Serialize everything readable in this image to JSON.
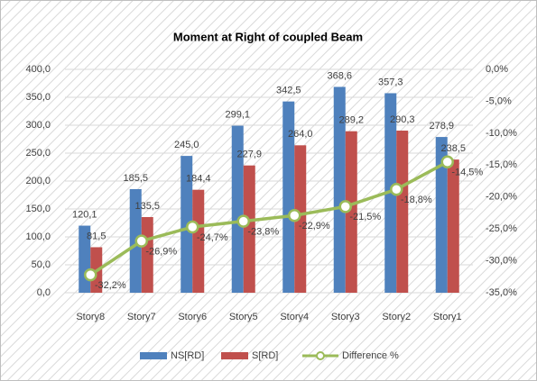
{
  "chart_data": {
    "type": "bar",
    "title": "Moment at  Right of coupled Beam",
    "categories": [
      "Story8",
      "Story7",
      "Story6",
      "Story5",
      "Story4",
      "Story3",
      "Story2",
      "Story1"
    ],
    "series": [
      {
        "name": "NS[RD]",
        "color": "#4f81bd",
        "type": "bar",
        "values": [
          120.1,
          185.5,
          245.0,
          299.1,
          342.5,
          368.6,
          357.3,
          278.9
        ],
        "value_labels": [
          "120,1",
          "185,5",
          "245,0",
          "299,1",
          "342,5",
          "368,6",
          "357,3",
          "278,9"
        ]
      },
      {
        "name": "S[RD]",
        "color": "#c0504d",
        "type": "bar",
        "values": [
          81.5,
          135.5,
          184.4,
          227.9,
          264.0,
          289.2,
          290.3,
          238.5
        ],
        "value_labels": [
          "81,5",
          "135,5",
          "184,4",
          "227,9",
          "264,0",
          "289,2",
          "290,3",
          "238,5"
        ]
      },
      {
        "name": "Difference %",
        "color": "#9bbb59",
        "type": "line",
        "axis": "y2",
        "values": [
          -32.2,
          -26.9,
          -24.7,
          -23.8,
          -22.9,
          -21.5,
          -18.8,
          -14.5
        ],
        "value_labels": [
          "-32,2%",
          "-26,9%",
          "-24,7%",
          "-23,8%",
          "-22,9%",
          "-21,5%",
          "-18,8%",
          "-14,5%"
        ]
      }
    ],
    "ylim": [
      0,
      400
    ],
    "yticks": [
      {
        "value": 0,
        "label": "0,0"
      },
      {
        "value": 50,
        "label": "50,0"
      },
      {
        "value": 100,
        "label": "100,0"
      },
      {
        "value": 150,
        "label": "150,0"
      },
      {
        "value": 200,
        "label": "200,0"
      },
      {
        "value": 250,
        "label": "250,0"
      },
      {
        "value": 300,
        "label": "300,0"
      },
      {
        "value": 350,
        "label": "350,0"
      },
      {
        "value": 400,
        "label": "400,0"
      }
    ],
    "y2lim": [
      -35,
      0
    ],
    "y2ticks": [
      {
        "value": -35,
        "label": "-35,0%"
      },
      {
        "value": -30,
        "label": "-30,0%"
      },
      {
        "value": -25,
        "label": "-25,0%"
      },
      {
        "value": -20,
        "label": "-20,0%"
      },
      {
        "value": -15,
        "label": "-15,0%"
      },
      {
        "value": -10,
        "label": "-10,0%"
      },
      {
        "value": -5,
        "label": "-5,0%"
      },
      {
        "value": 0,
        "label": "0,0%"
      }
    ],
    "grid": true,
    "legend": "bottom"
  }
}
